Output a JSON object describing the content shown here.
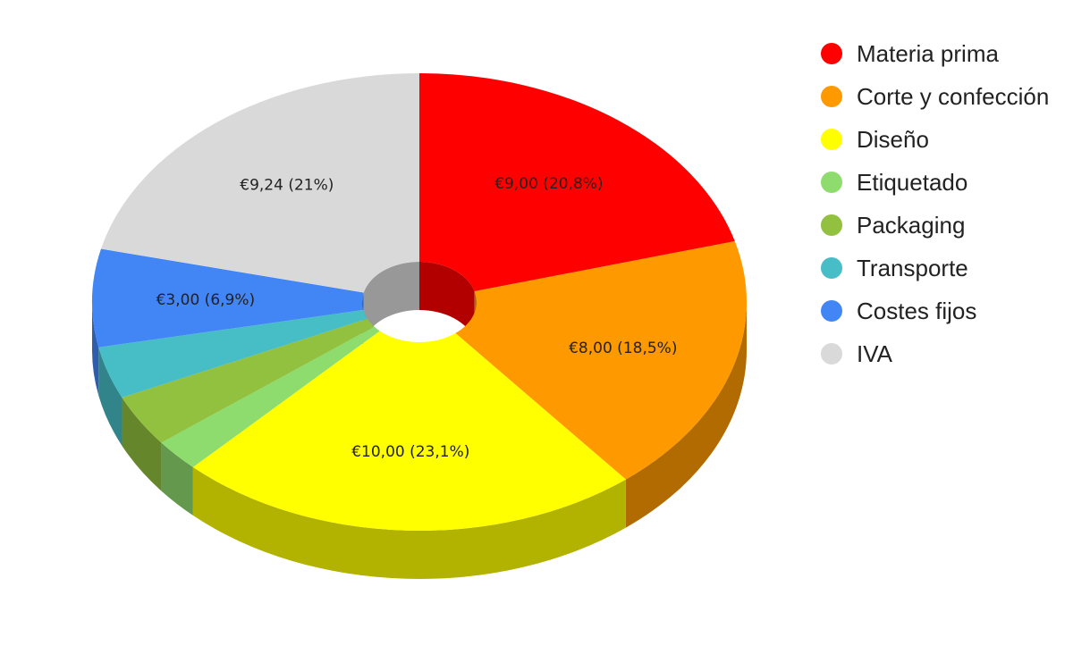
{
  "chart_data": {
    "type": "pie",
    "variant": "3d-donut",
    "currency": "€",
    "legend_position": "right",
    "slices": [
      {
        "name": "Materia prima",
        "value": 9.0,
        "label": "€9,00 (20,8%)",
        "color": "#ff0000",
        "side_color": "#b20000"
      },
      {
        "name": "Corte y confección",
        "value": 8.0,
        "label": "€8,00 (18,5%)",
        "color": "#ff9900",
        "side_color": "#b26b00"
      },
      {
        "name": "Diseño",
        "value": 10.0,
        "label": "€10,00 (23,1%)",
        "color": "#ffff00",
        "side_color": "#b2b200"
      },
      {
        "name": "Etiquetado",
        "value": 1.0,
        "label": "",
        "color": "#8fdc6e",
        "side_color": "#64994d"
      },
      {
        "name": "Packaging",
        "value": 1.6,
        "label": "",
        "color": "#92c03f",
        "side_color": "#66862c"
      },
      {
        "name": "Transporte",
        "value": 1.6,
        "label": "",
        "color": "#47bec6",
        "side_color": "#31858a"
      },
      {
        "name": "Costes fijos",
        "value": 3.0,
        "label": "€3,00 (6,9%)",
        "color": "#4285f4",
        "side_color": "#2e5dab"
      },
      {
        "name": "IVA",
        "value": 9.24,
        "label": "€9,24 (21%)",
        "color": "#d9d9d9",
        "side_color": "#989898"
      }
    ]
  }
}
